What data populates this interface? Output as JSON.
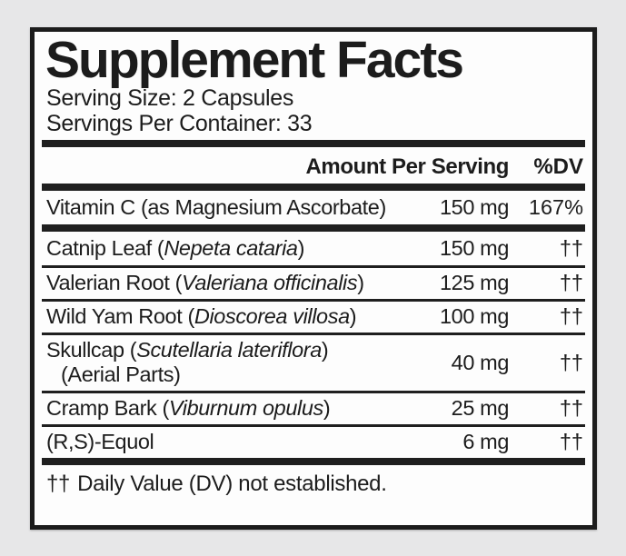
{
  "label": {
    "title": "Supplement Facts",
    "serving_size": "Serving Size: 2 Capsules",
    "servings_per_container": "Servings Per Container: 33",
    "columns": {
      "amount": "Amount Per Serving",
      "dv": "%DV"
    },
    "rows": [
      {
        "prefix": "Vitamin C (as Magnesium Ascorbate)",
        "italic": "",
        "suffix": "",
        "line2": "",
        "amount": "150 mg",
        "dv": "167%"
      },
      {
        "prefix": "Catnip Leaf (",
        "italic": "Nepeta cataria",
        "suffix": ")",
        "line2": "",
        "amount": "150 mg",
        "dv": "††"
      },
      {
        "prefix": "Valerian Root (",
        "italic": "Valeriana officinalis",
        "suffix": ")",
        "line2": "",
        "amount": "125 mg",
        "dv": "††"
      },
      {
        "prefix": "Wild Yam Root (",
        "italic": "Dioscorea villosa",
        "suffix": ")",
        "line2": "",
        "amount": "100 mg",
        "dv": "††"
      },
      {
        "prefix": "Skullcap (",
        "italic": "Scutellaria lateriflora",
        "suffix": ")",
        "line2": "(Aerial Parts)",
        "amount": "40 mg",
        "dv": "††"
      },
      {
        "prefix": "Cramp Bark (",
        "italic": "Viburnum opulus",
        "suffix": ")",
        "line2": "",
        "amount": "25 mg",
        "dv": "††"
      },
      {
        "prefix": "(R,S)-Equol",
        "italic": "",
        "suffix": "",
        "line2": "",
        "amount": "6 mg",
        "dv": "††"
      }
    ],
    "footnote_symbol": "††",
    "footnote_text": "Daily Value (DV) not established.",
    "colors": {
      "background": "#e7e7e8",
      "panel": "#fdfdfd",
      "ink": "#1c1c1c"
    }
  }
}
